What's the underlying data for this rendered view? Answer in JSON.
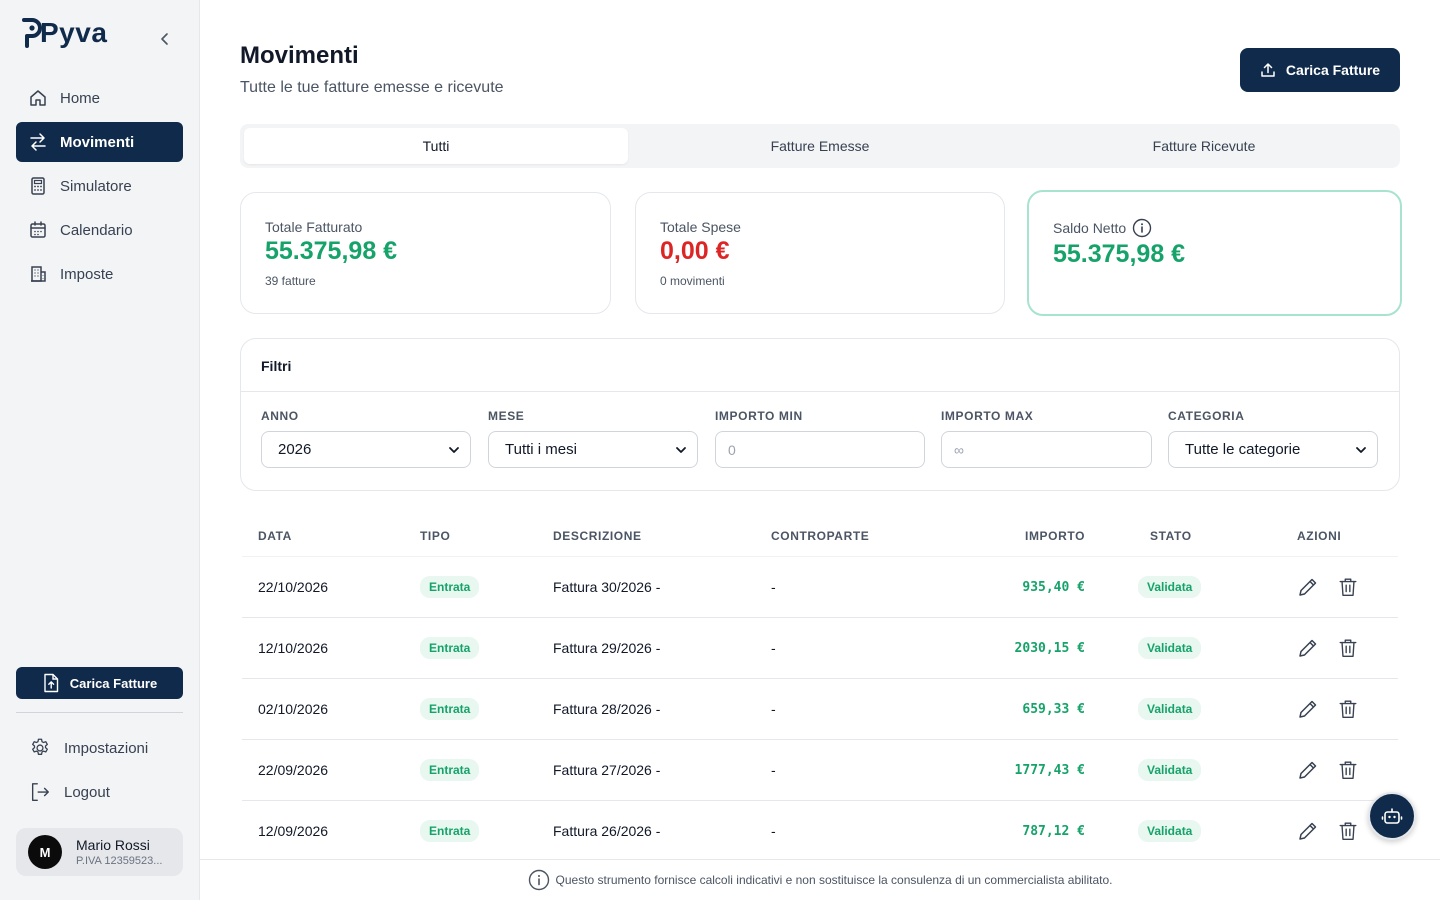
{
  "app": {
    "logo": "Pyva"
  },
  "sidebar": {
    "items": [
      {
        "label": "Home",
        "icon": "home-icon"
      },
      {
        "label": "Movimenti",
        "icon": "arrows-icon",
        "active": true
      },
      {
        "label": "Simulatore",
        "icon": "calculator-icon"
      },
      {
        "label": "Calendario",
        "icon": "calendar-icon"
      },
      {
        "label": "Imposte",
        "icon": "building-icon"
      }
    ],
    "upload_label": "Carica Fatture",
    "bottom": [
      {
        "label": "Impostazioni",
        "icon": "gear-icon"
      },
      {
        "label": "Logout",
        "icon": "logout-icon"
      }
    ],
    "user": {
      "initial": "M",
      "name": "Mario Rossi",
      "piva": "P.IVA 12359523..."
    }
  },
  "header": {
    "title": "Movimenti",
    "subtitle": "Tutte le tue fatture emesse e ricevute",
    "upload_label": "Carica Fatture"
  },
  "tabs": [
    {
      "label": "Tutti",
      "active": true
    },
    {
      "label": "Fatture Emesse"
    },
    {
      "label": "Fatture Ricevute"
    }
  ],
  "stats": {
    "fatturato": {
      "label": "Totale Fatturato",
      "value": "55.375,98 €",
      "sub": "39 fatture"
    },
    "spese": {
      "label": "Totale Spese",
      "value": "0,00 €",
      "sub": "0 movimenti"
    },
    "saldo": {
      "label": "Saldo Netto",
      "value": "55.375,98 €"
    }
  },
  "filters": {
    "title": "Filtri",
    "anno": {
      "label": "ANNO",
      "value": "2026"
    },
    "mese": {
      "label": "MESE",
      "value": "Tutti i mesi"
    },
    "importo_min": {
      "label": "IMPORTO MIN",
      "placeholder": "0"
    },
    "importo_max": {
      "label": "IMPORTO MAX",
      "placeholder": "∞"
    },
    "categoria": {
      "label": "CATEGORIA",
      "value": "Tutte le categorie"
    }
  },
  "table": {
    "headers": {
      "data": "DATA",
      "tipo": "TIPO",
      "descrizione": "DESCRIZIONE",
      "controparte": "CONTROPARTE",
      "importo": "IMPORTO",
      "stato": "STATO",
      "azioni": "AZIONI"
    },
    "rows": [
      {
        "data": "22/10/2026",
        "tipo": "Entrata",
        "descrizione": "Fattura 30/2026 -",
        "controparte": "-",
        "importo": "935,40 €",
        "stato": "Validata"
      },
      {
        "data": "12/10/2026",
        "tipo": "Entrata",
        "descrizione": "Fattura 29/2026 -",
        "controparte": "-",
        "importo": "2030,15 €",
        "stato": "Validata"
      },
      {
        "data": "02/10/2026",
        "tipo": "Entrata",
        "descrizione": "Fattura 28/2026 -",
        "controparte": "-",
        "importo": "659,33 €",
        "stato": "Validata"
      },
      {
        "data": "22/09/2026",
        "tipo": "Entrata",
        "descrizione": "Fattura 27/2026 -",
        "controparte": "-",
        "importo": "1777,43 €",
        "stato": "Validata"
      },
      {
        "data": "12/09/2026",
        "tipo": "Entrata",
        "descrizione": "Fattura 26/2026 -",
        "controparte": "-",
        "importo": "787,12 €",
        "stato": "Validata"
      }
    ]
  },
  "footer": {
    "disclaimer": "Questo strumento fornisce calcoli indicativi e non sostituisce la consulenza di un commercialista abilitato."
  },
  "colors": {
    "primary": "#0f2a4a",
    "positive": "#16a36a",
    "negative": "#dc2626",
    "highlight_border": "#a7e3cf"
  }
}
